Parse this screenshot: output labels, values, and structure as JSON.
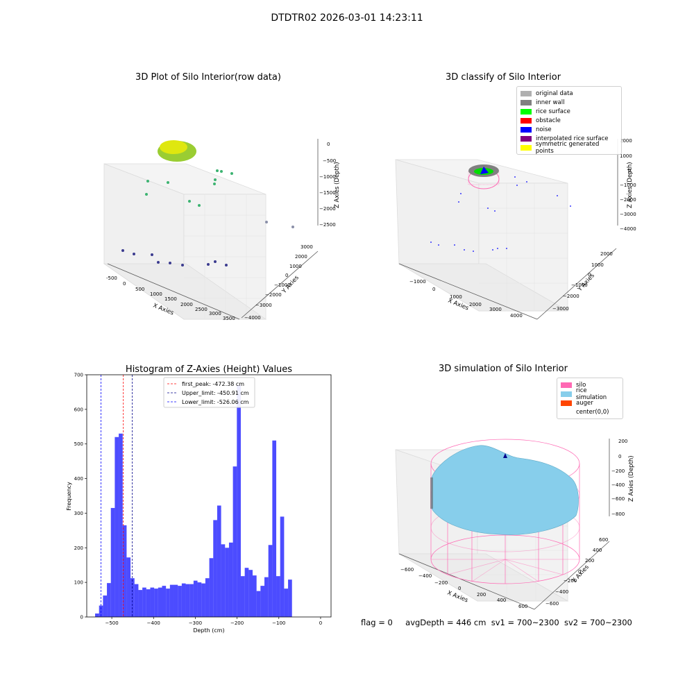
{
  "page": {
    "title": "DTDTR02 2026-03-01 14:23:11"
  },
  "panels": {
    "raw": {
      "title": "3D Plot of Silo Interior(row data)",
      "xlabel": "X Axies",
      "ylabel": "Y Axies",
      "zlabel": "Z Axies (Depth)",
      "x_ticks": [
        "-500",
        "0",
        "500",
        "1000",
        "1500",
        "2000",
        "2500",
        "3000",
        "3500"
      ],
      "y_ticks": [
        "3000",
        "2000",
        "1000",
        "0",
        "−1000",
        "−2000",
        "−3000",
        "−4000"
      ],
      "z_ticks": [
        "0",
        "−500",
        "−1000",
        "−1500",
        "−2000",
        "−2500"
      ]
    },
    "classify": {
      "title": "3D classify of Silo Interior",
      "xlabel": "X Axies",
      "ylabel": "Y Axies",
      "zlabel": "Z Axies (Depth)",
      "x_ticks": [
        "−1000",
        "0",
        "1000",
        "2000",
        "3000",
        "4000"
      ],
      "y_ticks": [
        "2000",
        "1000",
        "0",
        "−1000",
        "−2000",
        "−3000"
      ],
      "z_ticks": [
        "2000",
        "1000",
        "0",
        "−1000",
        "−2000",
        "−3000",
        "−4000"
      ],
      "legend": [
        {
          "label": "original data",
          "color": "#b0b0b0"
        },
        {
          "label": "inner wall",
          "color": "#808080"
        },
        {
          "label": "rice surface",
          "color": "#00ff00"
        },
        {
          "label": "obstacle",
          "color": "#ff0000"
        },
        {
          "label": "noise",
          "color": "#0000ff"
        },
        {
          "label": "interpolated rice surface",
          "color": "#800080"
        },
        {
          "label": "symmetric generated points",
          "color": "#ffff00"
        }
      ]
    },
    "simulation": {
      "title": "3D simulation of Silo Interior",
      "xlabel": "X Axies",
      "ylabel": "Y Axies",
      "zlabel": "Z Axies (Depth)",
      "x_ticks": [
        "−600",
        "−400",
        "−200",
        "0",
        "200",
        "400",
        "600"
      ],
      "y_ticks": [
        "600",
        "400",
        "200",
        "0",
        "−200",
        "−400",
        "−600"
      ],
      "z_ticks": [
        "200",
        "0",
        "−200",
        "−400",
        "−600",
        "−800"
      ],
      "legend": [
        {
          "label": "silo",
          "color": "#ff69b4"
        },
        {
          "label": "rice simulation",
          "color": "#87ceeb"
        },
        {
          "label": "auger",
          "color": "#ff4500"
        },
        {
          "label": "center(0,0)",
          "color": "#ffffff"
        }
      ]
    }
  },
  "chart_data": {
    "type": "bar",
    "title": "Histogram of Z-Axies (Height) Values",
    "xlabel": "Depth (cm)",
    "ylabel": "Frequency",
    "xlim": [
      -560,
      25
    ],
    "ylim": [
      0,
      700
    ],
    "x_ticks": [
      -500,
      -400,
      -300,
      -200,
      -100,
      0
    ],
    "y_ticks": [
      0,
      100,
      200,
      300,
      400,
      500,
      600,
      700
    ],
    "bar_color": "#0000ff",
    "bins_start": -540,
    "bin_width": 9.43,
    "values": [
      10,
      33,
      62,
      98,
      315,
      520,
      530,
      265,
      172,
      112,
      95,
      78,
      85,
      80,
      85,
      82,
      85,
      90,
      82,
      93,
      93,
      90,
      97,
      95,
      95,
      105,
      100,
      97,
      112,
      170,
      280,
      322,
      210,
      200,
      215,
      435,
      670,
      118,
      142,
      136,
      120,
      75,
      90,
      115,
      208,
      510,
      118,
      290,
      82,
      108
    ],
    "lines": [
      {
        "label": "first_peak: -472.38 cm",
        "value": -472.38,
        "color": "#ff0000"
      },
      {
        "label": "Upper_limit: -450.91 cm",
        "value": -450.91,
        "color": "#00008b"
      },
      {
        "label": "Lower_limit: -526.06 cm",
        "value": -526.06,
        "color": "#0000ff"
      }
    ]
  },
  "footer": {
    "flag": "flag = 0",
    "avg_depth": "avgDepth = 446 cm",
    "sv1": "sv1 = 700~2300",
    "sv2": "sv2 = 700~2300"
  }
}
